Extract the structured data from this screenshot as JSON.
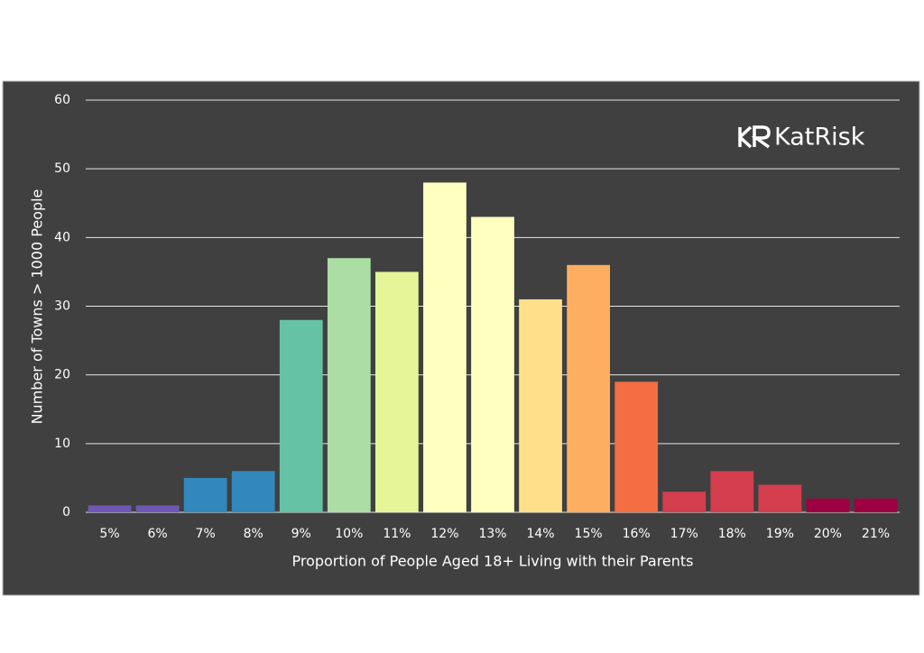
{
  "chart_data": {
    "type": "bar",
    "logo": "KatRisk",
    "x_label": "Proportion of People Aged 18+ Living with their Parents",
    "y_label": "Number of Towns > 1000 People",
    "categories": [
      "5%",
      "6%",
      "7%",
      "8%",
      "9%",
      "10%",
      "11%",
      "12%",
      "13%",
      "14%",
      "15%",
      "16%",
      "17%",
      "18%",
      "19%",
      "20%",
      "21%"
    ],
    "values": [
      1,
      1,
      5,
      6,
      28,
      37,
      35,
      48,
      43,
      31,
      36,
      19,
      3,
      6,
      4,
      2,
      2
    ],
    "colors": [
      "#6f58b5",
      "#6f58b5",
      "#3288bd",
      "#3288bd",
      "#66c2a5",
      "#abdda4",
      "#e6f598",
      "#ffffbf",
      "#ffffbf",
      "#fee08b",
      "#fdae61",
      "#f46d43",
      "#d53e4f",
      "#d53e4f",
      "#d53e4f",
      "#9e0142",
      "#9e0142"
    ],
    "ylim": [
      0,
      60
    ],
    "yticks": [
      0,
      10,
      20,
      30,
      40,
      50,
      60
    ],
    "grid": true
  }
}
